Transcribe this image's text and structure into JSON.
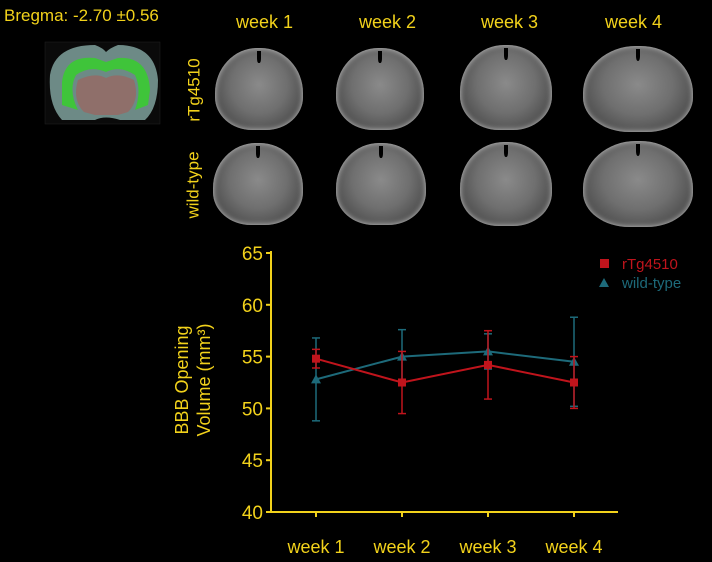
{
  "bregma_label": "Bregma: -2.70 ±0.56",
  "columns": [
    "week 1",
    "week 2",
    "week 3",
    "week 4"
  ],
  "rows": [
    "rTg4510",
    "wild-type"
  ],
  "chart_data": {
    "type": "line",
    "categories": [
      "week 1",
      "week 2",
      "week 3",
      "week 4"
    ],
    "ylabel": "BBB Opening Volume (mm³)",
    "ylabel_line1": "BBB Opening",
    "ylabel_line2": "Volume (mm³)",
    "ylim": [
      40,
      65
    ],
    "yticks": [
      "40",
      "45",
      "50",
      "55",
      "60",
      "65"
    ],
    "grid": false,
    "legend": "top-right",
    "series": [
      {
        "name": "rTg4510",
        "color": "#c0141c",
        "marker": "square",
        "values": [
          54.8,
          52.5,
          54.2,
          52.5
        ],
        "errors": [
          0.9,
          3.0,
          3.3,
          2.5
        ]
      },
      {
        "name": "wild-type",
        "color": "#1d6a7a",
        "marker": "triangle",
        "values": [
          52.8,
          55.0,
          55.5,
          54.5
        ],
        "errors": [
          4.0,
          2.6,
          1.7,
          4.3
        ]
      }
    ]
  }
}
